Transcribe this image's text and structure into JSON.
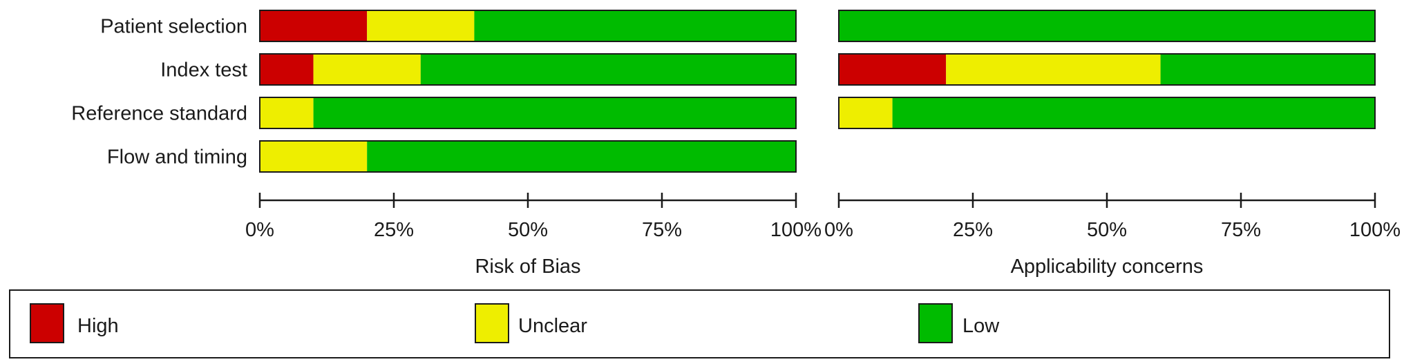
{
  "chart_data": [
    {
      "type": "bar",
      "stacked": true,
      "orientation": "horizontal",
      "xlabel": "Risk of Bias",
      "xlim": [
        0,
        100
      ],
      "ticks": [
        "0%",
        "25%",
        "50%",
        "75%",
        "100%"
      ],
      "categories": [
        "Patient selection",
        "Index test",
        "Reference standard",
        "Flow and timing"
      ],
      "series": [
        {
          "name": "High",
          "values": [
            20,
            10,
            0,
            0
          ]
        },
        {
          "name": "Unclear",
          "values": [
            20,
            20,
            10,
            20
          ]
        },
        {
          "name": "Low",
          "values": [
            60,
            70,
            90,
            80
          ]
        }
      ]
    },
    {
      "type": "bar",
      "stacked": true,
      "orientation": "horizontal",
      "xlabel": "Applicability concerns",
      "xlim": [
        0,
        100
      ],
      "ticks": [
        "0%",
        "25%",
        "50%",
        "75%",
        "100%"
      ],
      "categories": [
        "Patient selection",
        "Index test",
        "Reference standard"
      ],
      "series": [
        {
          "name": "High",
          "values": [
            0,
            20,
            0
          ]
        },
        {
          "name": "Unclear",
          "values": [
            0,
            40,
            10
          ]
        },
        {
          "name": "Low",
          "values": [
            100,
            40,
            90
          ]
        }
      ]
    }
  ],
  "legend": {
    "items": [
      {
        "label": "High",
        "color": "#cc0000"
      },
      {
        "label": "Unclear",
        "color": "#eeee00"
      },
      {
        "label": "Low",
        "color": "#00bb00"
      }
    ]
  },
  "colors": {
    "High": "#cc0000",
    "Unclear": "#eeee00",
    "Low": "#00bb00"
  }
}
